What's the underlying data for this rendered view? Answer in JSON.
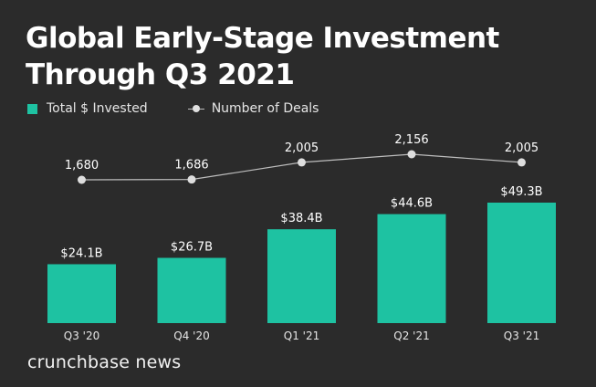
{
  "title": "Global Early-Stage Investment Through Q3 2021",
  "legend": {
    "invested_label": "Total $ Invested",
    "deals_label": "Number of Deals"
  },
  "colors": {
    "bar": "#1ec2a2",
    "line": "#bdbdbd",
    "point": "#dedede",
    "background": "#2b2b2b",
    "text": "#ffffff"
  },
  "chart_data": {
    "type": "bar",
    "title": "Global Early-Stage Investment Through Q3 2021",
    "categories": [
      "Q3 '20",
      "Q4 '20",
      "Q1 '21",
      "Q2 '21",
      "Q3 '21"
    ],
    "series": [
      {
        "name": "Total $ Invested",
        "type": "bar",
        "unit": "$B",
        "values": [
          24.1,
          26.7,
          38.4,
          44.6,
          49.3
        ],
        "labels": [
          "$24.1B",
          "$26.7B",
          "$38.4B",
          "$44.6B",
          "$49.3B"
        ]
      },
      {
        "name": "Number of Deals",
        "type": "line",
        "values": [
          1680,
          1686,
          2005,
          2156,
          2005
        ],
        "labels": [
          "1,680",
          "1,686",
          "2,005",
          "2,156",
          "2,005"
        ]
      }
    ],
    "xlabel": "",
    "ylabel": "",
    "grid": false,
    "legend_position": "top-left"
  },
  "brand": "crunchbase news"
}
